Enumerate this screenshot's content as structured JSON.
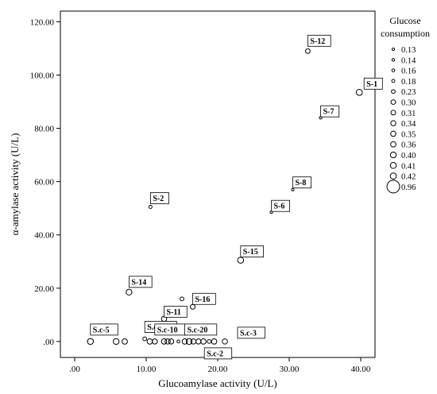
{
  "chart_data": {
    "type": "scatter",
    "xlabel": "Glucoamylase activity (U/L)",
    "ylabel": "α-amylase activity (U/L)",
    "xlim": [
      -2,
      42
    ],
    "ylim": [
      -6,
      124
    ],
    "x_ticks": [
      ".00",
      "10.00",
      "20.00",
      "30.00",
      "40.00"
    ],
    "x_tick_values": [
      0,
      10,
      20,
      30,
      40
    ],
    "y_ticks": [
      ".00",
      "20.00",
      "40.00",
      "60.00",
      "80.00",
      "100.00",
      "120.00"
    ],
    "y_tick_values": [
      0,
      20,
      40,
      60,
      80,
      100,
      120
    ],
    "grid": false,
    "legend": {
      "title": [
        "Glucose",
        "consumption"
      ],
      "placement": "right",
      "entries": [
        "0.13",
        "0.14",
        "0.16",
        "0.18",
        "0.23",
        "0.30",
        "0.31",
        "0.34",
        "0.35",
        "0.36",
        "0.40",
        "0.41",
        "0.42",
        "0.96"
      ]
    },
    "points": [
      {
        "x": 39.8,
        "y": 93.5,
        "size": 0.42,
        "label": "S-1"
      },
      {
        "x": 32.6,
        "y": 109.0,
        "size": 0.3,
        "label": "S-12"
      },
      {
        "x": 34.4,
        "y": 84.0,
        "size": 0.14,
        "label": "S-7"
      },
      {
        "x": 30.5,
        "y": 57.0,
        "size": 0.13,
        "label": "S-8"
      },
      {
        "x": 27.5,
        "y": 48.5,
        "size": 0.13,
        "label": "S-6"
      },
      {
        "x": 10.6,
        "y": 50.5,
        "size": 0.18,
        "label": "S-2"
      },
      {
        "x": 23.2,
        "y": 30.5,
        "size": 0.41,
        "label": "S-15"
      },
      {
        "x": 7.6,
        "y": 18.5,
        "size": 0.4,
        "label": "S-14"
      },
      {
        "x": 16.5,
        "y": 13.0,
        "size": 0.31,
        "label": "S-16"
      },
      {
        "x": 15.0,
        "y": 16.0,
        "size": 0.23,
        "label": ""
      },
      {
        "x": 12.5,
        "y": 8.5,
        "size": 0.35,
        "label": "S-11"
      },
      {
        "x": 2.2,
        "y": 0.0,
        "size": 0.41,
        "label": "S.c-5"
      },
      {
        "x": 5.8,
        "y": 0.0,
        "size": 0.4,
        "label": ""
      },
      {
        "x": 7.0,
        "y": 0.0,
        "size": 0.36,
        "label": ""
      },
      {
        "x": 9.8,
        "y": 1.0,
        "size": 0.23,
        "label": "S.c-19"
      },
      {
        "x": 10.5,
        "y": 0.0,
        "size": 0.36,
        "label": ""
      },
      {
        "x": 11.2,
        "y": 0.0,
        "size": 0.34,
        "label": "S.c-10"
      },
      {
        "x": 12.5,
        "y": 0.0,
        "size": 0.36,
        "label": ""
      },
      {
        "x": 13.0,
        "y": 0.0,
        "size": 0.35,
        "label": ""
      },
      {
        "x": 13.5,
        "y": 0.0,
        "size": 0.34,
        "label": ""
      },
      {
        "x": 14.5,
        "y": 0.0,
        "size": 0.16,
        "label": ""
      },
      {
        "x": 15.4,
        "y": 0.0,
        "size": 0.36,
        "label": "S.c-20"
      },
      {
        "x": 16.0,
        "y": 0.0,
        "size": 0.4,
        "label": ""
      },
      {
        "x": 16.6,
        "y": 0.0,
        "size": 0.35,
        "label": ""
      },
      {
        "x": 17.3,
        "y": 0.0,
        "size": 0.34,
        "label": ""
      },
      {
        "x": 18.0,
        "y": 0.0,
        "size": 0.36,
        "label": ""
      },
      {
        "x": 18.8,
        "y": 0.0,
        "size": 0.23,
        "label": "S.c-2"
      },
      {
        "x": 19.5,
        "y": 0.0,
        "size": 0.36,
        "label": ""
      },
      {
        "x": 21.0,
        "y": 0.0,
        "size": 0.35,
        "label": "S.c-3"
      }
    ]
  }
}
